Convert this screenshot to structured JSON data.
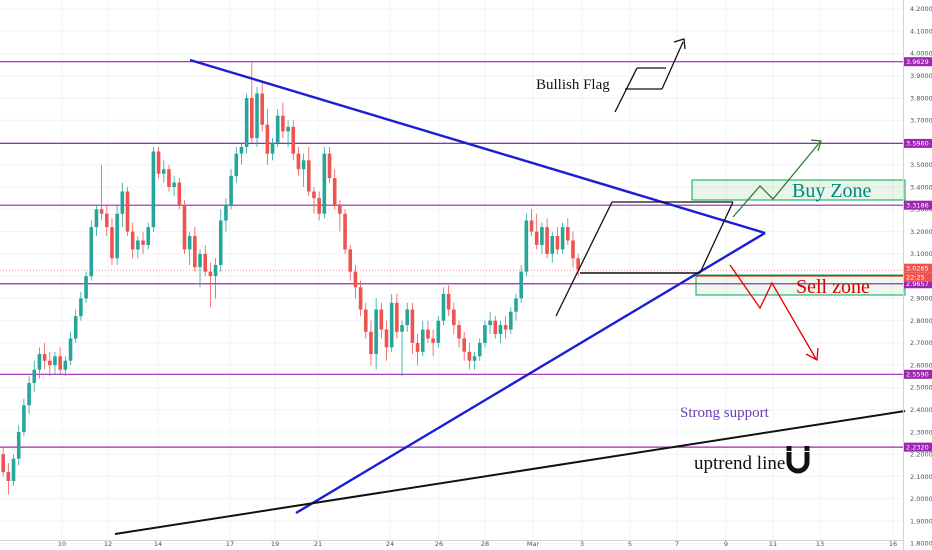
{
  "chart_data": {
    "type": "candlestick",
    "y_axis": {
      "ticks": [
        "4.2000",
        "4.1000",
        "4.0000",
        "3.9000",
        "3.8000",
        "3.7000",
        "3.6000",
        "3.5000",
        "3.4000",
        "3.3000",
        "3.2000",
        "3.1000",
        "3.0000",
        "2.9000",
        "2.8000",
        "2.7000",
        "2.6000",
        "2.5000",
        "2.4000",
        "2.3000",
        "2.2000",
        "2.1000",
        "2.0000",
        "1.9000",
        "1.8000"
      ],
      "range": [
        1.77,
        4.24
      ]
    },
    "x_axis": {
      "ticks": [
        "10",
        "12",
        "14",
        "17",
        "19",
        "21",
        "24",
        "26",
        "28",
        "Mar",
        "3",
        "5",
        "7",
        "9",
        "11",
        "13",
        "16"
      ]
    },
    "level_lines": [
      {
        "price": 3.9629,
        "label": "3.9629"
      },
      {
        "price": 3.596,
        "label": "3.5960"
      },
      {
        "price": 3.3186,
        "label": "3.3186"
      },
      {
        "price": 2.9657,
        "label": "2.9657"
      },
      {
        "price": 2.559,
        "label": "2.5590"
      },
      {
        "price": 2.232,
        "label": "2.2320"
      }
    ],
    "current_price": {
      "value": 3.0265,
      "label": "3.0265",
      "countdown": "22:25"
    },
    "candles": [
      [
        2.18,
        2.22,
        2.12,
        2.2
      ],
      [
        2.2,
        2.23,
        2.1,
        2.12
      ],
      [
        2.12,
        2.16,
        2.02,
        2.08
      ],
      [
        2.08,
        2.2,
        2.06,
        2.18
      ],
      [
        2.18,
        2.33,
        2.15,
        2.3
      ],
      [
        2.3,
        2.45,
        2.28,
        2.42
      ],
      [
        2.42,
        2.55,
        2.38,
        2.52
      ],
      [
        2.52,
        2.62,
        2.48,
        2.58
      ],
      [
        2.58,
        2.68,
        2.54,
        2.65
      ],
      [
        2.65,
        2.7,
        2.58,
        2.62
      ],
      [
        2.62,
        2.66,
        2.55,
        2.6
      ],
      [
        2.6,
        2.66,
        2.56,
        2.64
      ],
      [
        2.64,
        2.68,
        2.56,
        2.58
      ],
      [
        2.58,
        2.64,
        2.55,
        2.62
      ],
      [
        2.62,
        2.75,
        2.6,
        2.72
      ],
      [
        2.72,
        2.85,
        2.7,
        2.82
      ],
      [
        2.82,
        2.93,
        2.8,
        2.9
      ],
      [
        2.9,
        3.02,
        2.88,
        3.0
      ],
      [
        3.0,
        3.25,
        2.98,
        3.22
      ],
      [
        3.22,
        3.32,
        3.18,
        3.3
      ],
      [
        3.3,
        3.5,
        3.25,
        3.28
      ],
      [
        3.28,
        3.32,
        3.18,
        3.22
      ],
      [
        3.22,
        3.26,
        3.05,
        3.08
      ],
      [
        3.08,
        3.32,
        3.05,
        3.28
      ],
      [
        3.28,
        3.42,
        3.22,
        3.38
      ],
      [
        3.38,
        3.4,
        3.18,
        3.2
      ],
      [
        3.2,
        3.24,
        3.08,
        3.12
      ],
      [
        3.12,
        3.18,
        3.08,
        3.16
      ],
      [
        3.16,
        3.2,
        3.1,
        3.14
      ],
      [
        3.14,
        3.24,
        3.12,
        3.22
      ],
      [
        3.22,
        3.58,
        3.2,
        3.56
      ],
      [
        3.56,
        3.58,
        3.44,
        3.46
      ],
      [
        3.46,
        3.52,
        3.42,
        3.48
      ],
      [
        3.48,
        3.5,
        3.38,
        3.4
      ],
      [
        3.4,
        3.45,
        3.36,
        3.42
      ],
      [
        3.42,
        3.44,
        3.3,
        3.32
      ],
      [
        3.32,
        3.34,
        3.1,
        3.12
      ],
      [
        3.12,
        3.2,
        3.05,
        3.18
      ],
      [
        3.18,
        3.22,
        3.02,
        3.04
      ],
      [
        3.04,
        3.12,
        2.95,
        3.1
      ],
      [
        3.1,
        3.14,
        3.0,
        3.02
      ],
      [
        3.02,
        3.06,
        2.86,
        3.0
      ],
      [
        3.0,
        3.08,
        2.9,
        3.05
      ],
      [
        3.05,
        3.3,
        3.02,
        3.25
      ],
      [
        3.25,
        3.35,
        3.2,
        3.32
      ],
      [
        3.32,
        3.48,
        3.3,
        3.45
      ],
      [
        3.45,
        3.58,
        3.42,
        3.55
      ],
      [
        3.55,
        3.6,
        3.5,
        3.58
      ],
      [
        3.58,
        3.82,
        3.55,
        3.8
      ],
      [
        3.8,
        3.96,
        3.6,
        3.62
      ],
      [
        3.62,
        3.85,
        3.58,
        3.82
      ],
      [
        3.82,
        3.88,
        3.65,
        3.68
      ],
      [
        3.68,
        3.75,
        3.5,
        3.55
      ],
      [
        3.55,
        3.62,
        3.52,
        3.6
      ],
      [
        3.6,
        3.75,
        3.58,
        3.72
      ],
      [
        3.72,
        3.78,
        3.62,
        3.65
      ],
      [
        3.65,
        3.7,
        3.58,
        3.67
      ],
      [
        3.67,
        3.7,
        3.52,
        3.55
      ],
      [
        3.55,
        3.58,
        3.45,
        3.48
      ],
      [
        3.48,
        3.55,
        3.4,
        3.52
      ],
      [
        3.52,
        3.58,
        3.36,
        3.38
      ],
      [
        3.38,
        3.4,
        3.28,
        3.35
      ],
      [
        3.35,
        3.38,
        3.25,
        3.28
      ],
      [
        3.28,
        3.58,
        3.26,
        3.55
      ],
      [
        3.55,
        3.58,
        3.42,
        3.44
      ],
      [
        3.44,
        3.48,
        3.3,
        3.32
      ],
      [
        3.32,
        3.34,
        3.2,
        3.28
      ],
      [
        3.28,
        3.3,
        3.1,
        3.12
      ],
      [
        3.12,
        3.14,
        2.98,
        3.02
      ],
      [
        3.02,
        3.05,
        2.9,
        2.95
      ],
      [
        2.95,
        2.98,
        2.82,
        2.85
      ],
      [
        2.85,
        2.88,
        2.72,
        2.75
      ],
      [
        2.75,
        2.8,
        2.6,
        2.65
      ],
      [
        2.65,
        2.9,
        2.58,
        2.85
      ],
      [
        2.85,
        2.88,
        2.72,
        2.76
      ],
      [
        2.76,
        2.8,
        2.62,
        2.68
      ],
      [
        2.68,
        2.92,
        2.66,
        2.88
      ],
      [
        2.88,
        2.92,
        2.72,
        2.75
      ],
      [
        2.75,
        2.8,
        2.55,
        2.78
      ],
      [
        2.78,
        2.88,
        2.75,
        2.85
      ],
      [
        2.85,
        2.88,
        2.65,
        2.7
      ],
      [
        2.7,
        2.74,
        2.6,
        2.66
      ],
      [
        2.66,
        2.8,
        2.64,
        2.76
      ],
      [
        2.76,
        2.8,
        2.7,
        2.72
      ],
      [
        2.72,
        2.76,
        2.64,
        2.7
      ],
      [
        2.7,
        2.82,
        2.68,
        2.8
      ],
      [
        2.8,
        2.95,
        2.78,
        2.92
      ],
      [
        2.92,
        2.96,
        2.82,
        2.85
      ],
      [
        2.85,
        2.88,
        2.74,
        2.78
      ],
      [
        2.78,
        2.8,
        2.68,
        2.72
      ],
      [
        2.72,
        2.75,
        2.62,
        2.66
      ],
      [
        2.66,
        2.7,
        2.58,
        2.62
      ],
      [
        2.62,
        2.66,
        2.58,
        2.64
      ],
      [
        2.64,
        2.72,
        2.62,
        2.7
      ],
      [
        2.7,
        2.8,
        2.68,
        2.78
      ],
      [
        2.78,
        2.84,
        2.74,
        2.8
      ],
      [
        2.8,
        2.82,
        2.72,
        2.74
      ],
      [
        2.74,
        2.8,
        2.7,
        2.78
      ],
      [
        2.78,
        2.82,
        2.72,
        2.76
      ],
      [
        2.76,
        2.86,
        2.74,
        2.84
      ],
      [
        2.84,
        2.92,
        2.8,
        2.9
      ],
      [
        2.9,
        3.05,
        2.88,
        3.02
      ],
      [
        3.02,
        3.28,
        3.0,
        3.25
      ],
      [
        3.25,
        3.3,
        3.18,
        3.2
      ],
      [
        3.2,
        3.28,
        3.12,
        3.14
      ],
      [
        3.14,
        3.24,
        3.1,
        3.22
      ],
      [
        3.22,
        3.26,
        3.08,
        3.1
      ],
      [
        3.1,
        3.2,
        3.06,
        3.18
      ],
      [
        3.18,
        3.22,
        3.1,
        3.12
      ],
      [
        3.12,
        3.24,
        3.1,
        3.22
      ],
      [
        3.22,
        3.26,
        3.14,
        3.16
      ],
      [
        3.16,
        3.2,
        3.04,
        3.08
      ],
      [
        3.08,
        3.1,
        3.0,
        3.03
      ]
    ],
    "colors": {
      "up": "#26a69a",
      "down": "#ef5350",
      "level": "#9c27b0",
      "triangle": "#1a1ed4",
      "trend": "#111111",
      "buy": "#00a651",
      "sell": "#e00000"
    },
    "annotations": {
      "bullish_flag": "Bullish Flag",
      "buy_zone": "Buy Zone",
      "sell_zone": "Sell zone",
      "strong_support": "Strong support",
      "uptrend_line": "uptrend line"
    }
  }
}
